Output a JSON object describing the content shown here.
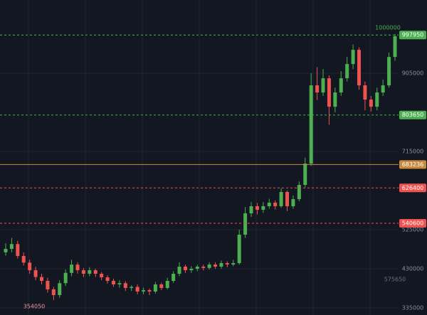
{
  "chart_data": {
    "type": "candlestick",
    "ylim": [
      317700,
      1083000
    ],
    "yticks": [
      335000,
      430000,
      525000,
      715000,
      905000
    ],
    "grid": true,
    "up_color": "#4caf50",
    "down_color": "#ef5350",
    "ohlc": [
      [
        470000,
        492000,
        462000,
        478300
      ],
      [
        478300,
        505000,
        470000,
        490000
      ],
      [
        490000,
        498000,
        455000,
        461100
      ],
      [
        461100,
        470000,
        438000,
        445000
      ],
      [
        445000,
        452000,
        418000,
        426500
      ],
      [
        426500,
        435000,
        402000,
        410000
      ],
      [
        410000,
        418000,
        392000,
        400600
      ],
      [
        400600,
        408000,
        372000,
        380000
      ],
      [
        380000,
        386000,
        354050,
        366100
      ],
      [
        366100,
        402000,
        360000,
        395000
      ],
      [
        395000,
        428000,
        388000,
        420000
      ],
      [
        420000,
        452000,
        412000,
        440000
      ],
      [
        440000,
        446000,
        418000,
        426500
      ],
      [
        426500,
        432000,
        410000,
        417900
      ],
      [
        417900,
        434000,
        412000,
        426500
      ],
      [
        426500,
        430000,
        410000,
        417900
      ],
      [
        417900,
        422000,
        402000,
        409300
      ],
      [
        409300,
        414000,
        394000,
        400600
      ],
      [
        400600,
        406000,
        386000,
        392000
      ],
      [
        392000,
        402000,
        384000,
        395000
      ],
      [
        395000,
        400000,
        376000,
        383400
      ],
      [
        383400,
        390000,
        376000,
        386000
      ],
      [
        386000,
        392000,
        368000,
        374700
      ],
      [
        374700,
        384000,
        368000,
        378000
      ],
      [
        378000,
        382000,
        366000,
        374700
      ],
      [
        374700,
        398000,
        370000,
        392000
      ],
      [
        392000,
        396000,
        378000,
        383400
      ],
      [
        383400,
        408000,
        380000,
        400600
      ],
      [
        400600,
        424000,
        396000,
        417900
      ],
      [
        417900,
        446000,
        412000,
        435200
      ],
      [
        435200,
        440000,
        420000,
        426500
      ],
      [
        426500,
        436000,
        420000,
        430000
      ],
      [
        430000,
        440000,
        424000,
        435200
      ],
      [
        435200,
        440000,
        426000,
        432000
      ],
      [
        432000,
        446000,
        428000,
        440300
      ],
      [
        440300,
        446000,
        430000,
        435200
      ],
      [
        435200,
        450000,
        430000,
        443800
      ],
      [
        443800,
        448000,
        434000,
        440300
      ],
      [
        440300,
        452000,
        436000,
        443800
      ],
      [
        443800,
        525000,
        440000,
        512900
      ],
      [
        512900,
        580000,
        505000,
        564700
      ],
      [
        564700,
        592000,
        556000,
        582000
      ],
      [
        582000,
        590000,
        562000,
        573300
      ],
      [
        573300,
        592000,
        566000,
        582000
      ],
      [
        582000,
        600000,
        576000,
        590600
      ],
      [
        590600,
        596000,
        574000,
        582000
      ],
      [
        582000,
        626000,
        578000,
        616500
      ],
      [
        616500,
        620000,
        570000,
        582000
      ],
      [
        582000,
        608000,
        576000,
        599200
      ],
      [
        599200,
        642000,
        594000,
        633800
      ],
      [
        633800,
        700000,
        628000,
        685600
      ],
      [
        685600,
        905000,
        680000,
        875600
      ],
      [
        875600,
        920000,
        840000,
        858300
      ],
      [
        858300,
        915000,
        850000,
        892800
      ],
      [
        892800,
        900000,
        780000,
        823700
      ],
      [
        823700,
        870000,
        810000,
        858300
      ],
      [
        858300,
        910000,
        850000,
        892800
      ],
      [
        892800,
        945000,
        885000,
        927400
      ],
      [
        927400,
        975000,
        915000,
        961900
      ],
      [
        961900,
        968000,
        865000,
        875600
      ],
      [
        875600,
        885000,
        815000,
        841000
      ],
      [
        841000,
        850000,
        812000,
        823700
      ],
      [
        823700,
        870000,
        815000,
        858300
      ],
      [
        858300,
        890000,
        850000,
        875600
      ],
      [
        875600,
        955000,
        870000,
        944600
      ],
      [
        944600,
        1000000,
        935000,
        995000
      ]
    ],
    "price_lines": [
      {
        "value": 997950,
        "color": "#4caf50",
        "style": "dashed"
      },
      {
        "value": 803650,
        "color": "#4caf50",
        "style": "dashed"
      },
      {
        "value": 683236,
        "color": "#c88a3c",
        "style": "solid"
      },
      {
        "value": 626400,
        "color": "#ef5350",
        "style": "dashed"
      },
      {
        "value": 540600,
        "color": "#ef5350",
        "style": "dashed"
      }
    ],
    "high_label": 1000000,
    "low_label": 354050,
    "marker_label": 575650
  }
}
